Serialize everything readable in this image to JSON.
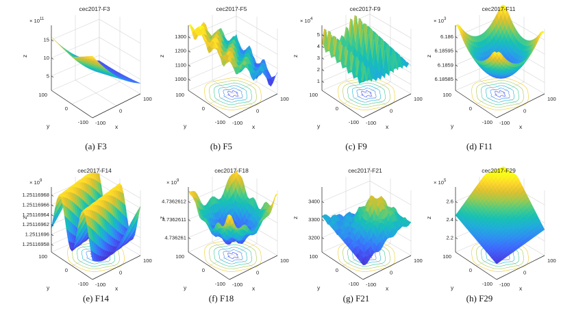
{
  "figure": {
    "panels": [
      {
        "id": "a",
        "caption": "(a)  F3",
        "title": "cec2017-F3",
        "exponent": "× 10",
        "exp_power": "11",
        "zticks": [
          "5",
          "10",
          "15"
        ],
        "zrange": [
          0,
          17
        ],
        "xticks": [
          "-100",
          "0",
          "100"
        ],
        "yticks": [
          "100",
          "0",
          "-100"
        ],
        "xlabel": "x",
        "ylabel": "y",
        "zlabel": "z",
        "surface_kind": "bowl-corner",
        "contour": false
      },
      {
        "id": "b",
        "caption": "(b)  F5",
        "title": "cec2017-F5",
        "exponent": "",
        "exp_power": "",
        "zticks": [
          "1000",
          "1100",
          "1200",
          "1300"
        ],
        "zrange": [
          980,
          1320
        ],
        "xticks": [
          "-100",
          "0",
          "100"
        ],
        "yticks": [
          "100",
          "0",
          "-100"
        ],
        "xlabel": "x",
        "ylabel": "y",
        "zlabel": "z",
        "surface_kind": "rastrigin",
        "contour": true
      },
      {
        "id": "c",
        "caption": "(c)  F9",
        "title": "cec2017-F9",
        "exponent": "× 10",
        "exp_power": "4",
        "zticks": [
          "1",
          "2",
          "3",
          "4",
          "5"
        ],
        "zrange": [
          0.6,
          5.6
        ],
        "xticks": [
          "-100",
          "0",
          "100"
        ],
        "yticks": [
          "100",
          "0",
          "-100"
        ],
        "xlabel": "x",
        "ylabel": "y",
        "zlabel": "z",
        "surface_kind": "spiky",
        "contour": true
      },
      {
        "id": "d",
        "caption": "(d)  F11",
        "title": "cec2017-F11",
        "exponent": "× 10",
        "exp_power": "3",
        "zticks": [
          "6.18585",
          "6.1859",
          "6.18595",
          "6.186"
        ],
        "zrange": [
          6.1858,
          6.18605
        ],
        "xticks": [
          "-100",
          "0",
          "100"
        ],
        "yticks": [
          "100",
          "0",
          "-100"
        ],
        "xlabel": "x",
        "ylabel": "y",
        "zlabel": "z",
        "surface_kind": "bowl",
        "contour": true
      },
      {
        "id": "e",
        "caption": "(e)  F14",
        "title": "cec2017-F14",
        "exponent": "× 10",
        "exp_power": "9",
        "zticks": [
          "1.25116958",
          "1.2511696",
          "1.25116962",
          "1.25116964",
          "1.25116966",
          "1.25116968"
        ],
        "zrange": [
          1.25116957,
          1.25116969
        ],
        "xticks": [
          "-100",
          "0",
          "100"
        ],
        "yticks": [
          "100",
          "0",
          "-100"
        ],
        "xlabel": "x",
        "ylabel": "y",
        "zlabel": "z",
        "surface_kind": "ridges",
        "contour": true
      },
      {
        "id": "f",
        "caption": "(f)  F18",
        "title": "cec2017-F18",
        "exponent": "× 10",
        "exp_power": "9",
        "zticks": [
          "4.736261",
          "4.7362611",
          "4.7362612"
        ],
        "zrange": [
          4.73626095,
          4.73626125
        ],
        "xticks": [
          "-100",
          "0",
          "100"
        ],
        "yticks": [
          "100",
          "0",
          "-100"
        ],
        "xlabel": "x",
        "ylabel": "y",
        "zlabel": "z",
        "surface_kind": "bowl-noisy",
        "contour": true
      },
      {
        "id": "g",
        "caption": "(g)  F21",
        "title": "cec2017-F21",
        "exponent": "",
        "exp_power": "",
        "zticks": [
          "3200",
          "3300",
          "3400"
        ],
        "zrange": [
          3150,
          3480
        ],
        "xticks": [
          "-100",
          "0",
          "100"
        ],
        "yticks": [
          "100",
          "0",
          "-100"
        ],
        "xlabel": "x",
        "ylabel": "y",
        "zlabel": "z",
        "surface_kind": "rugged",
        "contour": true
      },
      {
        "id": "h",
        "caption": "(h)  F29",
        "title": "cec2017-F29",
        "exponent": "× 10",
        "exp_power": "5",
        "zticks": [
          "2.2",
          "2.4",
          "2.6"
        ],
        "zrange": [
          2.1,
          2.75
        ],
        "xticks": [
          "-100",
          "0",
          "100"
        ],
        "yticks": [
          "100",
          "0",
          "-100"
        ],
        "xlabel": "x",
        "ylabel": "y",
        "zlabel": "z",
        "surface_kind": "slope",
        "contour": true
      }
    ]
  },
  "colormap": [
    "#3e26a8",
    "#4742e6",
    "#3d67fd",
    "#2d8ef2",
    "#1eadd9",
    "#16c0b3",
    "#48cb86",
    "#9cc94e",
    "#dcc02e",
    "#fdd52b",
    "#f9fb15"
  ]
}
